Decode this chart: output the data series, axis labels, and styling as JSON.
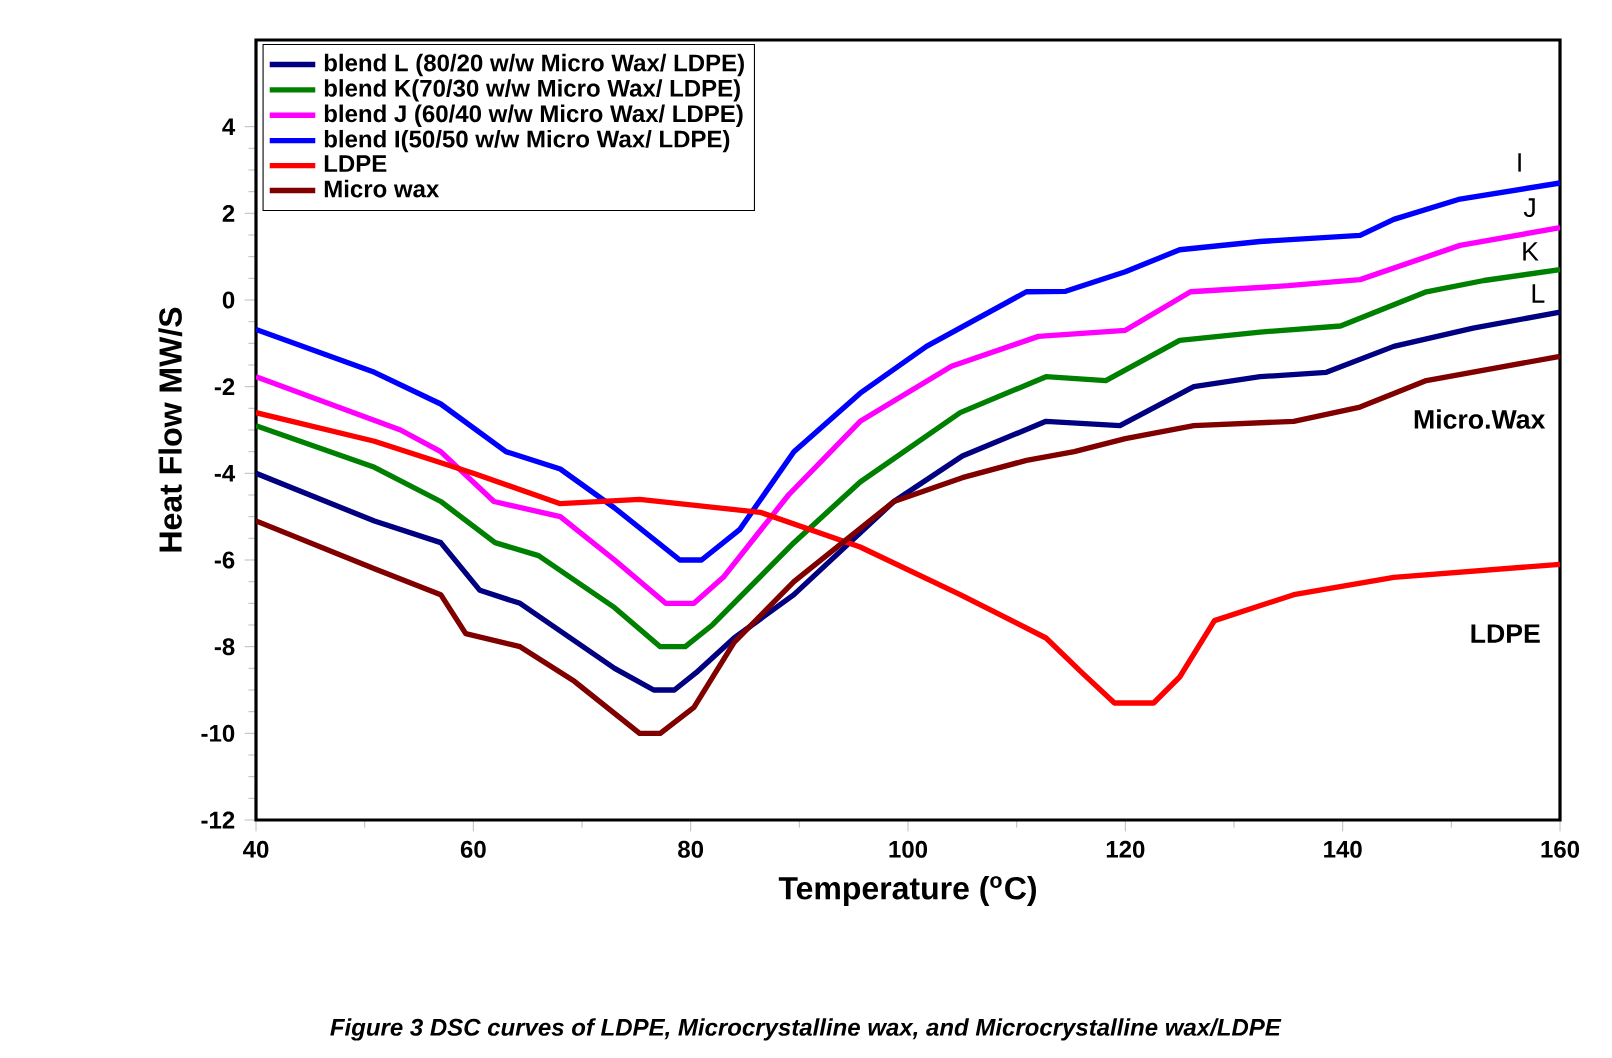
{
  "chart_data": {
    "type": "line",
    "xlabel": "Temperature ($^{o}$C)",
    "ylabel": "Heat Flow MW/S",
    "xlim": [
      40,
      160
    ],
    "ylim": [
      -12,
      6
    ],
    "xticks": [
      40,
      60,
      80,
      100,
      120,
      140,
      160
    ],
    "yticks": [
      -12,
      -10,
      -8,
      -6,
      -4,
      -2,
      0,
      2,
      4
    ],
    "grid": false,
    "legend": "top left",
    "marker": "none",
    "line_style": "solid",
    "series": [
      {
        "name": "blend L (80/20 w/w Micro Wax/ LDPE)",
        "color": "#000080",
        "x": [
          40,
          50.9,
          57,
          60.6,
          64.3,
          73,
          76.6,
          78.5,
          80.5,
          84,
          89.5,
          98.7,
          105,
          112.7,
          119.5,
          126.3,
          132.4,
          138.5,
          144.7,
          152,
          160
        ],
        "values": [
          -4.0,
          -5.1,
          -5.6,
          -6.7,
          -7.0,
          -8.5,
          -9.0,
          -9.0,
          -8.6,
          -7.8,
          -6.8,
          -4.65,
          -3.6,
          -2.8,
          -2.9,
          -2.0,
          -1.77,
          -1.67,
          -1.07,
          -0.65,
          -0.28
        ]
      },
      {
        "name": "blend K(70/30 w/w Micro Wax/ LDPE)",
        "color": "#008000",
        "x": [
          40,
          50.9,
          57,
          62,
          66,
          73,
          77.2,
          79.5,
          82,
          89.5,
          95.6,
          104.8,
          112.7,
          118.2,
          125,
          132.4,
          139.8,
          147.7,
          153,
          160
        ],
        "values": [
          -2.9,
          -3.86,
          -4.65,
          -5.6,
          -5.9,
          -7.1,
          -8.0,
          -8.0,
          -7.5,
          -5.6,
          -4.2,
          -2.6,
          -1.77,
          -1.86,
          -0.93,
          -0.74,
          -0.6,
          0.19,
          0.45,
          0.7
        ]
      },
      {
        "name": "blend J (60/40 w/w Micro Wax/ LDPE)",
        "color": "#ff00ff",
        "x": [
          40,
          53.3,
          57,
          61.9,
          68,
          73,
          77.7,
          80.3,
          83,
          89,
          95.6,
          104,
          112,
          120,
          126,
          135,
          141.6,
          150.8,
          160
        ],
        "values": [
          -1.77,
          -3.0,
          -3.5,
          -4.65,
          -5.0,
          -6.0,
          -7.0,
          -7.0,
          -6.4,
          -4.5,
          -2.8,
          -1.53,
          -0.84,
          -0.7,
          0.19,
          0.33,
          0.47,
          1.26,
          1.67
        ]
      },
      {
        "name": "blend I(50/50 w/w Micro Wax/ LDPE)",
        "color": "#0000ff",
        "x": [
          40,
          50.9,
          57,
          63,
          68,
          73,
          79,
          81,
          84.5,
          89.5,
          95.6,
          101.7,
          110.9,
          114.5,
          120,
          125,
          132.4,
          141.6,
          144.7,
          150.8,
          160
        ],
        "values": [
          -0.68,
          -1.67,
          -2.4,
          -3.5,
          -3.9,
          -4.8,
          -6.0,
          -6.0,
          -5.3,
          -3.5,
          -2.15,
          -1.07,
          0.19,
          0.2,
          0.65,
          1.16,
          1.35,
          1.49,
          1.86,
          2.33,
          2.7
        ]
      },
      {
        "name": "LDPE",
        "color": "#ff0000",
        "x": [
          40,
          50.9,
          60,
          68,
          75.3,
          86.4,
          95.6,
          104.8,
          112.7,
          116,
          119,
          122.6,
          125,
          128.2,
          135.5,
          144.7,
          160
        ],
        "values": [
          -2.6,
          -3.26,
          -4.0,
          -4.7,
          -4.6,
          -4.9,
          -5.7,
          -6.8,
          -7.8,
          -8.6,
          -9.3,
          -9.3,
          -8.7,
          -7.4,
          -6.8,
          -6.4,
          -6.1
        ]
      },
      {
        "name": "Micro wax",
        "color": "#800000",
        "x": [
          40,
          50.9,
          57,
          59.3,
          64.3,
          69.3,
          75.3,
          77.2,
          80.3,
          84,
          89.5,
          98.7,
          105,
          110.9,
          115.3,
          120,
          126.3,
          135.5,
          141.6,
          147.7,
          160
        ],
        "values": [
          -5.1,
          -6.2,
          -6.8,
          -7.7,
          -8.0,
          -8.8,
          -10.0,
          -10.0,
          -9.4,
          -7.9,
          -6.5,
          -4.65,
          -4.1,
          -3.7,
          -3.5,
          -3.2,
          -2.9,
          -2.8,
          -2.47,
          -1.86,
          -1.3
        ]
      }
    ],
    "annotations": [
      "I",
      "J",
      "K",
      "L",
      "Micro.Wax",
      "LDPE",
      "Figure 3 DSC curves of LDPE, Microcrystalline wax, and Microcrystalline wax/LDPE"
    ]
  }
}
